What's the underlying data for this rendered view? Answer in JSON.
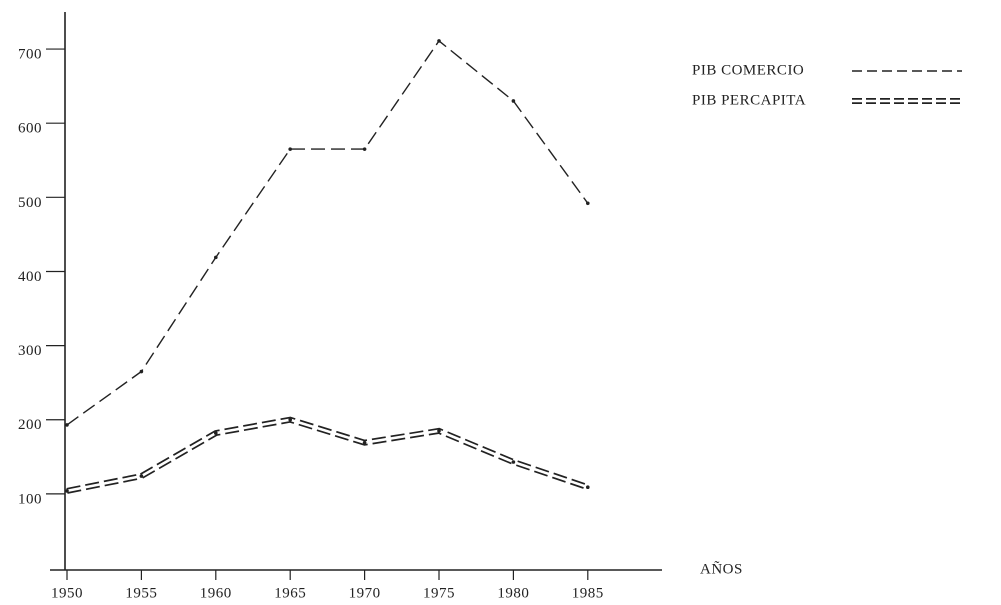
{
  "chart_data": {
    "type": "line",
    "x_label": "AÑOS",
    "x": [
      1950,
      1955,
      1960,
      1965,
      1970,
      1975,
      1980,
      1985
    ],
    "xlim": [
      1950,
      1989
    ],
    "xticks": [
      1950,
      1955,
      1960,
      1965,
      1970,
      1975,
      1980,
      1985
    ],
    "ylim": [
      0,
      750
    ],
    "yticks": [
      100,
      200,
      300,
      400,
      500,
      600,
      700
    ],
    "series": [
      {
        "name": "PIB COMERCIO",
        "color": "#222222",
        "style": "dashed",
        "values": [
          193,
          265,
          419,
          565,
          565,
          711,
          630,
          492
        ]
      },
      {
        "name": "PIB PERCAPITA",
        "color": "#222222",
        "style": "double-dashed",
        "values": [
          104,
          124,
          182,
          200,
          169,
          185,
          143,
          109
        ]
      }
    ]
  }
}
